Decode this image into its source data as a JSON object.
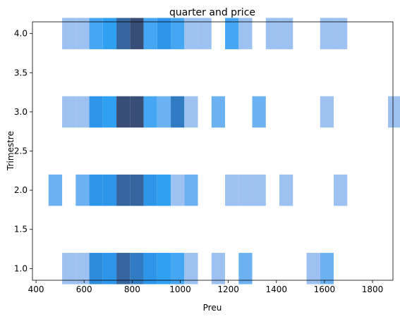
{
  "chart_data": {
    "type": "heatmap",
    "title": "quarter and price",
    "xlabel": "Preu",
    "ylabel": "Trimestre",
    "xlim": [
      385,
      1885
    ],
    "ylim": [
      0.85,
      4.15
    ],
    "xticks": [
      400,
      600,
      800,
      1000,
      1200,
      1400,
      1600,
      1800
    ],
    "yticks": [
      1.0,
      1.5,
      2.0,
      2.5,
      3.0,
      3.5,
      4.0
    ],
    "ytick_labels": [
      "1.0",
      "1.5",
      "2.0",
      "2.5",
      "3.0",
      "3.5",
      "4.0"
    ],
    "grid": false,
    "bin_x_start": 452,
    "bin_width": 56.5,
    "bin_height": 0.4,
    "colors": {
      "1": "#9dc1f0",
      "2": "#6cb2f3",
      "3": "#45a7f3",
      "4": "#2fa0f2",
      "5": "#2d96ea",
      "6": "#2e8cdc",
      "7": "#317bc2",
      "8": "#35659f",
      "9": "#384e76"
    },
    "rows": [
      {
        "y": 1.0,
        "counts": [
          0,
          1,
          1,
          6,
          5,
          8,
          7,
          5,
          4,
          3,
          1,
          0,
          1,
          0,
          2,
          0,
          0,
          0,
          0,
          1,
          2,
          0,
          0,
          0,
          0,
          0
        ]
      },
      {
        "y": 2.0,
        "counts": [
          2,
          0,
          2,
          5,
          5,
          8,
          8,
          5,
          4,
          1,
          2,
          0,
          0,
          1,
          1,
          1,
          0,
          1,
          0,
          0,
          0,
          1,
          0,
          0,
          0,
          0
        ]
      },
      {
        "y": 3.0,
        "counts": [
          0,
          1,
          1,
          5,
          4,
          9,
          9,
          3,
          2,
          7,
          1,
          0,
          2,
          0,
          0,
          2,
          0,
          0,
          0,
          0,
          1,
          0,
          0,
          0,
          0,
          1
        ]
      },
      {
        "y": 4.0,
        "counts": [
          0,
          1,
          1,
          3,
          4,
          8,
          9,
          3,
          5,
          3,
          1,
          1,
          0,
          3,
          1,
          0,
          1,
          1,
          0,
          0,
          1,
          1,
          0,
          0,
          0,
          0
        ]
      }
    ]
  }
}
